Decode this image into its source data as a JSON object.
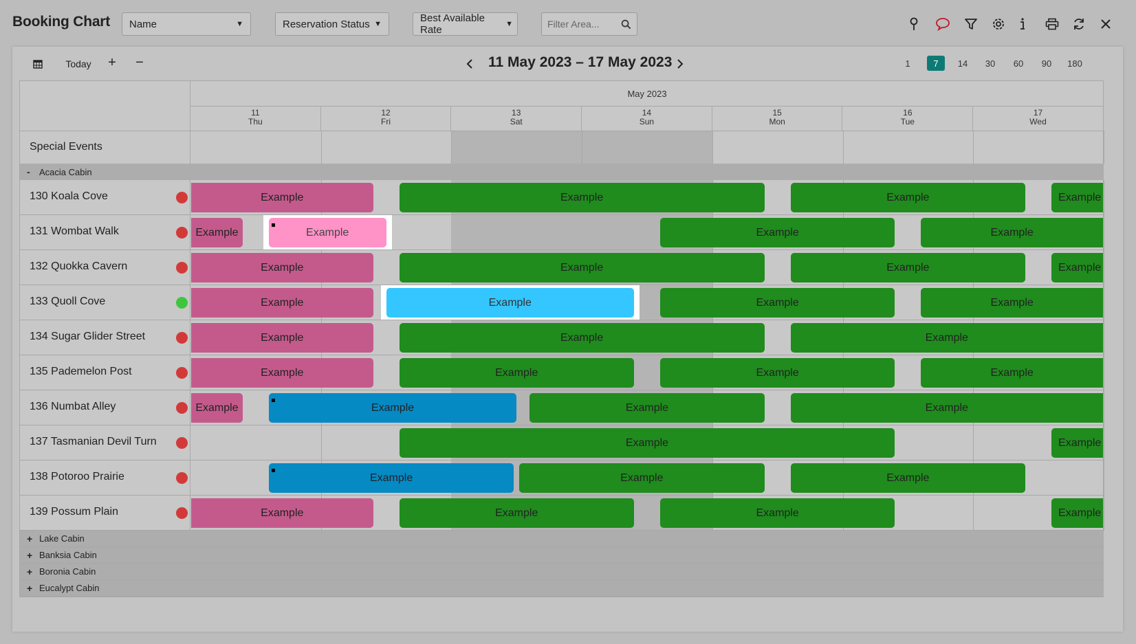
{
  "app": {
    "title": "Booking Chart"
  },
  "toolbar": {
    "sort_select": "Name",
    "status_select": "Reservation Status",
    "rate_select": "Best Available Rate",
    "filter_placeholder": "Filter Area..."
  },
  "icons": {
    "pin": "map-pin-icon",
    "comment": "comment-icon",
    "filter": "filter-icon",
    "settings": "gear-icon",
    "info": "info-icon",
    "print": "print-icon",
    "refresh": "refresh-icon",
    "close": "close-icon"
  },
  "colors": {
    "active_zoom": "#0e7a75",
    "pink": "#c45a8c",
    "light_pink": "#ff93c8",
    "green": "#1f8c1d",
    "cyan": "#33c6ff",
    "blue": "#068ac4",
    "dot_red": "#d23a3a",
    "dot_green": "#3ec63e"
  },
  "navigation": {
    "today": "Today",
    "plus": "+",
    "minus": "−",
    "range": "11 May 2023 – 17 May 2023",
    "zoom_options": [
      "1",
      "7",
      "14",
      "30",
      "60",
      "90",
      "180"
    ],
    "active_zoom": "7"
  },
  "calendar": {
    "month": "May 2023",
    "days": [
      {
        "num": "11",
        "dow": "Thu",
        "weekend": false
      },
      {
        "num": "12",
        "dow": "Fri",
        "weekend": false
      },
      {
        "num": "13",
        "dow": "Sat",
        "weekend": true
      },
      {
        "num": "14",
        "dow": "Sun",
        "weekend": true
      },
      {
        "num": "15",
        "dow": "Mon",
        "weekend": false
      },
      {
        "num": "16",
        "dow": "Tue",
        "weekend": false
      },
      {
        "num": "17",
        "dow": "Wed",
        "weekend": false
      }
    ]
  },
  "special_events": {
    "label": "Special Events"
  },
  "groups": [
    {
      "name": "Acacia Cabin",
      "expanded": true,
      "toggle": "-",
      "rooms": [
        {
          "name": "130 Koala Cove",
          "status": "red",
          "bookings": [
            {
              "label": "Example",
              "type": "pink",
              "start": 0,
              "end": 1.4
            },
            {
              "label": "Example",
              "type": "green",
              "start": 1.6,
              "end": 4.4
            },
            {
              "label": "Example",
              "type": "green",
              "start": 4.6,
              "end": 6.4
            },
            {
              "label": "Example",
              "type": "green",
              "start": 6.6,
              "end": 7.0
            }
          ]
        },
        {
          "name": "131 Wombat Walk",
          "status": "red",
          "bookings": [
            {
              "label": "Example",
              "type": "pink",
              "start": 0,
              "end": 0.4
            },
            {
              "label": "Example",
              "type": "lightpink",
              "start": 0.6,
              "end": 1.5,
              "highlight": true,
              "marker": true
            },
            {
              "label": "Example",
              "type": "green",
              "start": 3.6,
              "end": 5.4
            },
            {
              "label": "Example",
              "type": "green",
              "start": 5.6,
              "end": 7.0
            }
          ]
        },
        {
          "name": "132 Quokka Cavern",
          "status": "red",
          "bookings": [
            {
              "label": "Example",
              "type": "pink",
              "start": 0,
              "end": 1.4
            },
            {
              "label": "Example",
              "type": "green",
              "start": 1.6,
              "end": 4.4
            },
            {
              "label": "Example",
              "type": "green",
              "start": 4.6,
              "end": 6.4
            },
            {
              "label": "Example",
              "type": "green",
              "start": 6.6,
              "end": 7.0
            }
          ]
        },
        {
          "name": "133 Quoll Cove",
          "status": "green",
          "bookings": [
            {
              "label": "Example",
              "type": "pink",
              "start": 0,
              "end": 1.4
            },
            {
              "label": "Example",
              "type": "cyan",
              "start": 1.5,
              "end": 3.4,
              "highlight": true
            },
            {
              "label": "Example",
              "type": "green",
              "start": 3.6,
              "end": 5.4
            },
            {
              "label": "Example",
              "type": "green",
              "start": 5.6,
              "end": 7.0
            }
          ]
        },
        {
          "name": "134 Sugar Glider Street",
          "status": "red",
          "bookings": [
            {
              "label": "Example",
              "type": "pink",
              "start": 0,
              "end": 1.4
            },
            {
              "label": "Example",
              "type": "green",
              "start": 1.6,
              "end": 4.4
            },
            {
              "label": "Example",
              "type": "green",
              "start": 4.6,
              "end": 7.0
            }
          ]
        },
        {
          "name": "135 Pademelon Post",
          "status": "red",
          "bookings": [
            {
              "label": "Example",
              "type": "pink",
              "start": 0,
              "end": 1.4
            },
            {
              "label": "Example",
              "type": "green",
              "start": 1.6,
              "end": 3.4
            },
            {
              "label": "Example",
              "type": "green",
              "start": 3.6,
              "end": 5.4
            },
            {
              "label": "Example",
              "type": "green",
              "start": 5.6,
              "end": 7.0
            }
          ]
        },
        {
          "name": "136 Numbat Alley",
          "status": "red",
          "bookings": [
            {
              "label": "Example",
              "type": "pink",
              "start": 0,
              "end": 0.4
            },
            {
              "label": "Example",
              "type": "blue",
              "start": 0.6,
              "end": 2.5,
              "marker": true
            },
            {
              "label": "Example",
              "type": "green",
              "start": 2.6,
              "end": 4.4
            },
            {
              "label": "Example",
              "type": "green",
              "start": 4.6,
              "end": 7.0
            }
          ]
        },
        {
          "name": "137 Tasmanian Devil Turn",
          "status": "red",
          "bookings": [
            {
              "label": "Example",
              "type": "green",
              "start": 1.6,
              "end": 5.4
            },
            {
              "label": "Example",
              "type": "green",
              "start": 6.6,
              "end": 7.0
            }
          ]
        },
        {
          "name": "138 Potoroo Prairie",
          "status": "red",
          "bookings": [
            {
              "label": "Example",
              "type": "blue",
              "start": 0.6,
              "end": 2.48,
              "marker": true
            },
            {
              "label": "Example",
              "type": "green",
              "start": 2.52,
              "end": 4.4
            },
            {
              "label": "Example",
              "type": "green",
              "start": 4.6,
              "end": 6.4
            }
          ]
        },
        {
          "name": "139 Possum Plain",
          "status": "red",
          "bookings": [
            {
              "label": "Example",
              "type": "pink",
              "start": 0,
              "end": 1.4
            },
            {
              "label": "Example",
              "type": "green",
              "start": 1.6,
              "end": 3.4
            },
            {
              "label": "Example",
              "type": "green",
              "start": 3.6,
              "end": 5.4
            },
            {
              "label": "Example",
              "type": "green",
              "start": 6.6,
              "end": 7.0
            }
          ]
        }
      ]
    },
    {
      "name": "Lake Cabin",
      "expanded": false,
      "toggle": "+",
      "rooms": []
    },
    {
      "name": "Banksia Cabin",
      "expanded": false,
      "toggle": "+",
      "rooms": []
    },
    {
      "name": "Boronia Cabin",
      "expanded": false,
      "toggle": "+",
      "rooms": []
    },
    {
      "name": "Eucalypt Cabin",
      "expanded": false,
      "toggle": "+",
      "rooms": []
    }
  ]
}
